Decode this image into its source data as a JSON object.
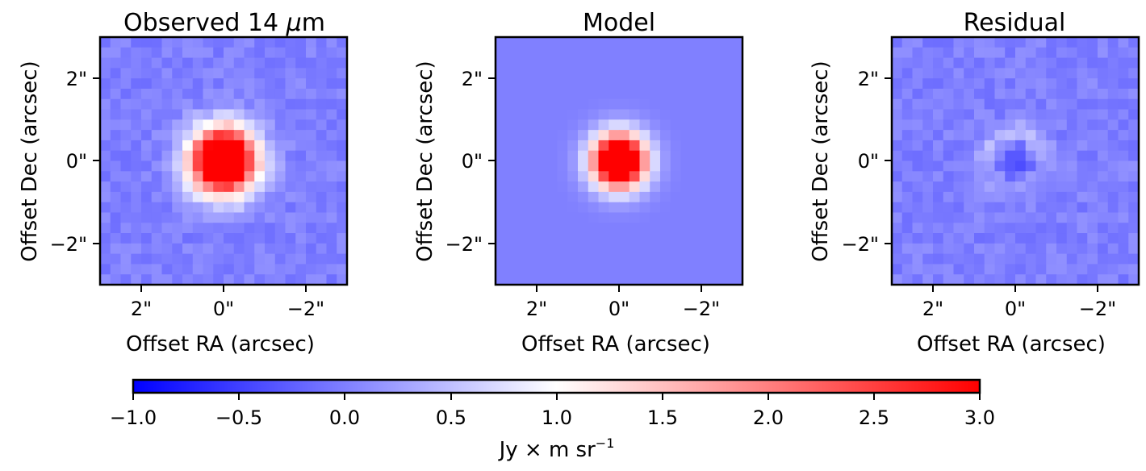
{
  "chart_data": {
    "type": "heatmap",
    "colormap": "bwr",
    "color_range": [
      -1.0,
      3.0
    ],
    "panels": [
      {
        "title_prefix": "Observed 14 ",
        "title_mu": "μ",
        "title_suffix": "m",
        "xlabel": "Offset RA (arcsec)",
        "ylabel": "Offset Dec (arcsec)",
        "xlim": [
          3,
          -3
        ],
        "ylim": [
          -3,
          3
        ],
        "grid": [
          24,
          24
        ],
        "background_level": 0.0,
        "noise_level": 0.14,
        "source": {
          "x": 0.0,
          "y": 0.0,
          "peak": 3.0,
          "sigma": 0.55,
          "ring": false
        },
        "x_ticks": [
          "2\"",
          "0\"",
          "−2\""
        ],
        "y_ticks": [
          "2\"",
          "0\"",
          "−2\""
        ]
      },
      {
        "title": "Model",
        "xlabel": "Offset RA (arcsec)",
        "ylabel": "Offset Dec (arcsec)",
        "xlim": [
          3,
          -3
        ],
        "ylim": [
          -3,
          3
        ],
        "grid": [
          24,
          24
        ],
        "background_level": 0.0,
        "noise_level": 0.0,
        "source": {
          "x": 0.0,
          "y": 0.0,
          "peak": 3.0,
          "sigma": 0.45,
          "ring": false
        },
        "x_ticks": [
          "2\"",
          "0\"",
          "−2\""
        ],
        "y_ticks": [
          "2\"",
          "0\"",
          "−2\""
        ]
      },
      {
        "title": "Residual",
        "xlabel": "Offset RA (arcsec)",
        "ylabel": "Offset Dec (arcsec)",
        "xlim": [
          3,
          -3
        ],
        "ylim": [
          -3,
          3
        ],
        "grid": [
          24,
          24
        ],
        "background_level": 0.0,
        "noise_level": 0.14,
        "source": {
          "x": 0.0,
          "y": 0.0,
          "peak": 0.45,
          "sigma": 0.55,
          "ring": true
        },
        "x_ticks": [
          "2\"",
          "0\"",
          "−2\""
        ],
        "y_ticks": [
          "2\"",
          "0\"",
          "−2\""
        ]
      }
    ],
    "colorbar": {
      "ticks": [
        "−1.0",
        "−0.5",
        "0.0",
        "0.5",
        "1.0",
        "1.5",
        "2.0",
        "2.5",
        "3.0"
      ],
      "label_main": "Jy × m sr",
      "label_exp": "−1"
    }
  }
}
